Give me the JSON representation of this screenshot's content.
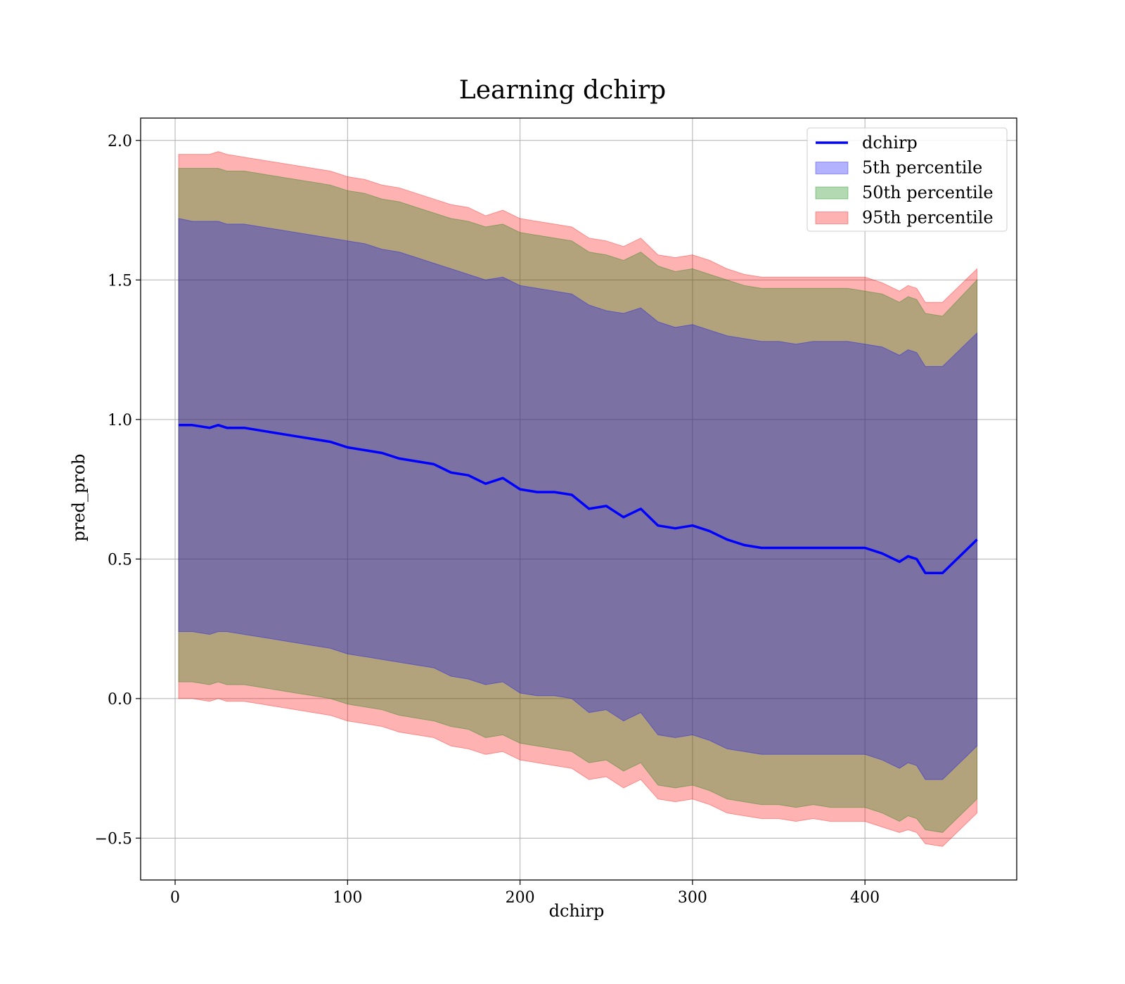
{
  "chart_data": {
    "type": "area",
    "title": "Learning dchirp",
    "xlabel": "dchirp",
    "ylabel": "pred_prob",
    "xlim": [
      -20,
      488
    ],
    "ylim": [
      -0.65,
      2.08
    ],
    "xticks": [
      0,
      100,
      200,
      300,
      400
    ],
    "xtick_labels": [
      "0",
      "100",
      "200",
      "300",
      "400"
    ],
    "yticks": [
      -0.5,
      0.0,
      0.5,
      1.0,
      1.5,
      2.0
    ],
    "ytick_labels": [
      "−0.5",
      "0.0",
      "0.5",
      "1.0",
      "1.5",
      "2.0"
    ],
    "grid": true,
    "legend_position": "upper-right",
    "x": [
      2,
      10,
      20,
      25,
      30,
      40,
      50,
      60,
      70,
      80,
      90,
      100,
      110,
      120,
      130,
      140,
      150,
      160,
      170,
      180,
      190,
      200,
      210,
      220,
      230,
      240,
      250,
      260,
      270,
      280,
      290,
      300,
      310,
      320,
      330,
      340,
      350,
      360,
      370,
      380,
      390,
      400,
      410,
      420,
      425,
      430,
      435,
      445,
      465
    ],
    "series": [
      {
        "name": "dchirp",
        "kind": "line",
        "color": "#0000ff",
        "values": [
          0.98,
          0.98,
          0.97,
          0.98,
          0.97,
          0.97,
          0.96,
          0.95,
          0.94,
          0.93,
          0.92,
          0.9,
          0.89,
          0.88,
          0.86,
          0.85,
          0.84,
          0.81,
          0.8,
          0.77,
          0.79,
          0.75,
          0.74,
          0.74,
          0.73,
          0.68,
          0.69,
          0.65,
          0.68,
          0.62,
          0.61,
          0.62,
          0.6,
          0.57,
          0.55,
          0.54,
          0.54,
          0.54,
          0.54,
          0.54,
          0.54,
          0.54,
          0.52,
          0.49,
          0.51,
          0.5,
          0.45,
          0.45,
          0.57
        ]
      },
      {
        "name": "5th percentile",
        "kind": "band",
        "color": "#0000ff",
        "upper": [
          1.72,
          1.71,
          1.71,
          1.71,
          1.7,
          1.7,
          1.69,
          1.68,
          1.67,
          1.66,
          1.65,
          1.64,
          1.63,
          1.61,
          1.6,
          1.58,
          1.56,
          1.54,
          1.52,
          1.5,
          1.51,
          1.48,
          1.47,
          1.46,
          1.45,
          1.41,
          1.39,
          1.38,
          1.4,
          1.35,
          1.33,
          1.34,
          1.32,
          1.3,
          1.29,
          1.28,
          1.28,
          1.27,
          1.28,
          1.28,
          1.28,
          1.27,
          1.26,
          1.23,
          1.25,
          1.24,
          1.19,
          1.19,
          1.31
        ],
        "lower": [
          0.24,
          0.24,
          0.23,
          0.24,
          0.24,
          0.23,
          0.22,
          0.21,
          0.2,
          0.19,
          0.18,
          0.16,
          0.15,
          0.14,
          0.13,
          0.12,
          0.11,
          0.08,
          0.07,
          0.05,
          0.06,
          0.02,
          0.01,
          0.01,
          0.0,
          -0.05,
          -0.04,
          -0.08,
          -0.05,
          -0.13,
          -0.14,
          -0.13,
          -0.15,
          -0.18,
          -0.19,
          -0.2,
          -0.2,
          -0.2,
          -0.2,
          -0.2,
          -0.2,
          -0.2,
          -0.22,
          -0.25,
          -0.23,
          -0.24,
          -0.29,
          -0.29,
          -0.17
        ]
      },
      {
        "name": "50th percentile",
        "kind": "band",
        "color": "#008000",
        "upper": [
          1.9,
          1.9,
          1.9,
          1.9,
          1.89,
          1.89,
          1.88,
          1.87,
          1.86,
          1.85,
          1.84,
          1.82,
          1.81,
          1.79,
          1.78,
          1.76,
          1.74,
          1.72,
          1.71,
          1.69,
          1.7,
          1.67,
          1.66,
          1.65,
          1.64,
          1.6,
          1.59,
          1.57,
          1.6,
          1.55,
          1.53,
          1.54,
          1.52,
          1.5,
          1.48,
          1.47,
          1.47,
          1.47,
          1.47,
          1.47,
          1.47,
          1.46,
          1.45,
          1.42,
          1.44,
          1.43,
          1.38,
          1.37,
          1.5
        ],
        "lower": [
          0.06,
          0.06,
          0.05,
          0.06,
          0.05,
          0.05,
          0.04,
          0.03,
          0.02,
          0.01,
          0.0,
          -0.02,
          -0.03,
          -0.04,
          -0.06,
          -0.07,
          -0.08,
          -0.1,
          -0.11,
          -0.14,
          -0.13,
          -0.16,
          -0.17,
          -0.18,
          -0.19,
          -0.23,
          -0.22,
          -0.26,
          -0.23,
          -0.31,
          -0.32,
          -0.31,
          -0.33,
          -0.36,
          -0.37,
          -0.38,
          -0.38,
          -0.39,
          -0.38,
          -0.39,
          -0.39,
          -0.39,
          -0.41,
          -0.44,
          -0.42,
          -0.43,
          -0.47,
          -0.48,
          -0.36
        ]
      },
      {
        "name": "95th percentile",
        "kind": "band",
        "color": "#ff0000",
        "upper": [
          1.95,
          1.95,
          1.95,
          1.96,
          1.95,
          1.94,
          1.93,
          1.92,
          1.91,
          1.9,
          1.89,
          1.87,
          1.86,
          1.84,
          1.83,
          1.81,
          1.79,
          1.77,
          1.76,
          1.73,
          1.75,
          1.72,
          1.71,
          1.7,
          1.69,
          1.65,
          1.64,
          1.62,
          1.65,
          1.59,
          1.58,
          1.59,
          1.57,
          1.54,
          1.52,
          1.51,
          1.51,
          1.51,
          1.51,
          1.51,
          1.51,
          1.51,
          1.49,
          1.46,
          1.48,
          1.47,
          1.42,
          1.42,
          1.54
        ],
        "lower": [
          0.0,
          0.0,
          -0.01,
          0.0,
          -0.01,
          -0.01,
          -0.02,
          -0.03,
          -0.04,
          -0.05,
          -0.06,
          -0.08,
          -0.09,
          -0.1,
          -0.12,
          -0.13,
          -0.14,
          -0.17,
          -0.18,
          -0.2,
          -0.19,
          -0.22,
          -0.23,
          -0.24,
          -0.25,
          -0.29,
          -0.28,
          -0.32,
          -0.29,
          -0.36,
          -0.37,
          -0.36,
          -0.38,
          -0.41,
          -0.42,
          -0.43,
          -0.43,
          -0.44,
          -0.43,
          -0.44,
          -0.44,
          -0.44,
          -0.46,
          -0.48,
          -0.47,
          -0.48,
          -0.52,
          -0.53,
          -0.41
        ]
      }
    ]
  }
}
